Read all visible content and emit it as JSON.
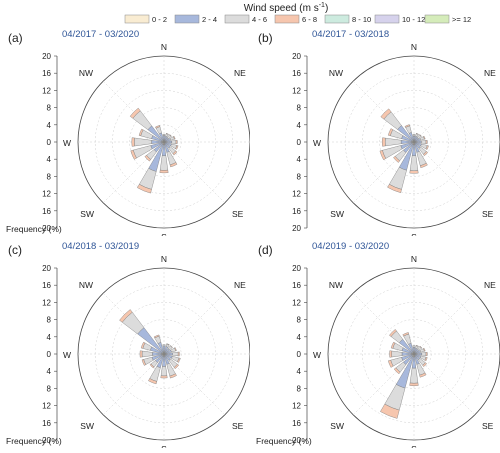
{
  "legend": {
    "title": "Wind speed (m s",
    "title_sup": "-1",
    "title_end": ")",
    "items": [
      {
        "label": "0 - 2",
        "color": "#f9ecd2"
      },
      {
        "label": "2 - 4",
        "color": "#a7b8dc"
      },
      {
        "label": "4 - 6",
        "color": "#dcdcdc"
      },
      {
        "label": "6 - 8",
        "color": "#f6c6ae"
      },
      {
        "label": "8 - 10",
        "color": "#cdebdf"
      },
      {
        "label": "10 - 12",
        "color": "#d6d2ec"
      },
      {
        "label": ">= 12",
        "color": "#d5ecba"
      }
    ]
  },
  "chart_data": [
    {
      "type": "wind-rose",
      "panel_label": "(a)",
      "period": "04/2017 - 03/2020",
      "xlabel": "Frequency (%)",
      "directions": [
        "N",
        "NNE",
        "NE",
        "ENE",
        "E",
        "ESE",
        "SE",
        "SSE",
        "S",
        "SSW",
        "SW",
        "WSW",
        "W",
        "WNW",
        "NW",
        "NNW"
      ],
      "compass_labels": [
        "N",
        "NE",
        "E",
        "SE",
        "S",
        "SW",
        "W",
        "NW"
      ],
      "radial_ticks": [
        0,
        4,
        8,
        12,
        16,
        20
      ],
      "axis_tick_labels": [
        "20",
        "16",
        "12",
        "8",
        "4",
        "0",
        "4",
        "8",
        "12",
        "16",
        "20"
      ],
      "rmax": 20,
      "stacks": [
        [
          0.3,
          1.2,
          0.3,
          0.0,
          0,
          0,
          0
        ],
        [
          0.4,
          1.0,
          0.6,
          0.1,
          0,
          0,
          0
        ],
        [
          0.4,
          0.9,
          0.8,
          0.1,
          0,
          0,
          0
        ],
        [
          0.4,
          1.2,
          0.9,
          0.2,
          0,
          0,
          0
        ],
        [
          0.4,
          1.4,
          1.0,
          0.3,
          0,
          0,
          0
        ],
        [
          0.4,
          1.4,
          1.3,
          0.3,
          0,
          0,
          0
        ],
        [
          0.4,
          1.4,
          1.6,
          0.4,
          0,
          0,
          0
        ],
        [
          0.5,
          2.0,
          3.0,
          0.5,
          0,
          0,
          0
        ],
        [
          0.6,
          2.6,
          3.4,
          0.6,
          0,
          0,
          0
        ],
        [
          0.6,
          6.5,
          4.3,
          0.9,
          0,
          0,
          0
        ],
        [
          0.5,
          2.4,
          2.2,
          0.5,
          0,
          0,
          0
        ],
        [
          0.5,
          2.7,
          4.2,
          0.6,
          0,
          0,
          0
        ],
        [
          0.5,
          2.4,
          4.0,
          0.6,
          0,
          0,
          0
        ],
        [
          0.5,
          2.5,
          2.6,
          0.4,
          0,
          0,
          0
        ],
        [
          0.5,
          4.2,
          4.4,
          0.8,
          0,
          0,
          0
        ],
        [
          0.4,
          1.8,
          1.5,
          0.3,
          0,
          0,
          0
        ]
      ]
    },
    {
      "type": "wind-rose",
      "panel_label": "(b)",
      "period": "04/2017 - 03/2018",
      "xlabel": "",
      "directions": [
        "N",
        "NNE",
        "NE",
        "ENE",
        "E",
        "ESE",
        "SE",
        "SSE",
        "S",
        "SSW",
        "SW",
        "WSW",
        "W",
        "WNW",
        "NW",
        "NNW"
      ],
      "compass_labels": [
        "N",
        "NE",
        "E",
        "SE",
        "S",
        "SW",
        "W",
        "NW"
      ],
      "radial_ticks": [
        0,
        4,
        8,
        12,
        16,
        20
      ],
      "axis_tick_labels": [
        "20",
        "16",
        "12",
        "8",
        "4",
        "0",
        "4",
        "8",
        "12",
        "16",
        "20"
      ],
      "rmax": 20,
      "stacks": [
        [
          0.3,
          1.1,
          0.4,
          0.0,
          0,
          0,
          0
        ],
        [
          0.4,
          1.0,
          0.6,
          0.1,
          0,
          0,
          0
        ],
        [
          0.4,
          0.9,
          0.8,
          0.1,
          0,
          0,
          0
        ],
        [
          0.4,
          1.2,
          0.9,
          0.2,
          0,
          0,
          0
        ],
        [
          0.4,
          1.3,
          1.1,
          0.3,
          0,
          0,
          0
        ],
        [
          0.4,
          1.4,
          1.4,
          0.3,
          0,
          0,
          0
        ],
        [
          0.4,
          1.5,
          1.7,
          0.4,
          0,
          0,
          0
        ],
        [
          0.5,
          2.0,
          3.2,
          0.5,
          0,
          0,
          0
        ],
        [
          0.6,
          2.6,
          3.5,
          0.6,
          0,
          0,
          0
        ],
        [
          0.6,
          6.2,
          4.6,
          0.8,
          0,
          0,
          0
        ],
        [
          0.5,
          2.6,
          2.4,
          0.5,
          0,
          0,
          0
        ],
        [
          0.5,
          2.7,
          4.4,
          0.6,
          0,
          0,
          0
        ],
        [
          0.5,
          2.5,
          3.7,
          0.7,
          0,
          0,
          0
        ],
        [
          0.5,
          2.5,
          2.7,
          0.5,
          0,
          0,
          0
        ],
        [
          0.5,
          4.3,
          4.0,
          0.9,
          0,
          0,
          0
        ],
        [
          0.4,
          1.9,
          1.6,
          0.3,
          0,
          0,
          0
        ]
      ]
    },
    {
      "type": "wind-rose",
      "panel_label": "(c)",
      "period": "04/2018 - 03/2019",
      "xlabel": "Frequency (%)",
      "directions": [
        "N",
        "NNE",
        "NE",
        "ENE",
        "E",
        "ESE",
        "SE",
        "SSE",
        "S",
        "SSW",
        "SW",
        "WSW",
        "W",
        "WNW",
        "NW",
        "NNW"
      ],
      "compass_labels": [
        "N",
        "NE",
        "E",
        "SE",
        "S",
        "SW",
        "W",
        "NW"
      ],
      "radial_ticks": [
        0,
        4,
        8,
        12,
        16,
        20
      ],
      "axis_tick_labels": [
        "20",
        "16",
        "12",
        "8",
        "4",
        "0",
        "4",
        "8",
        "12",
        "16",
        "20"
      ],
      "rmax": 20,
      "stacks": [
        [
          0.3,
          1.6,
          0.3,
          0.0,
          0,
          0,
          0
        ],
        [
          0.4,
          1.4,
          0.6,
          0.1,
          0,
          0,
          0
        ],
        [
          0.4,
          1.2,
          0.8,
          0.1,
          0,
          0,
          0
        ],
        [
          0.4,
          1.4,
          1.0,
          0.2,
          0,
          0,
          0
        ],
        [
          0.4,
          1.6,
          1.3,
          0.3,
          0,
          0,
          0
        ],
        [
          0.4,
          1.6,
          1.6,
          0.3,
          0,
          0,
          0
        ],
        [
          0.4,
          1.5,
          2.0,
          0.4,
          0,
          0,
          0
        ],
        [
          0.5,
          2.0,
          2.8,
          0.5,
          0,
          0,
          0
        ],
        [
          0.5,
          2.4,
          2.2,
          0.5,
          0,
          0,
          0
        ],
        [
          0.5,
          2.8,
          3.3,
          0.6,
          0,
          0,
          0
        ],
        [
          0.5,
          2.0,
          1.3,
          0.3,
          0,
          0,
          0
        ],
        [
          0.5,
          2.4,
          2.0,
          0.4,
          0,
          0,
          0
        ],
        [
          0.5,
          2.2,
          2.4,
          0.5,
          0,
          0,
          0
        ],
        [
          0.5,
          2.8,
          1.8,
          0.4,
          0,
          0,
          0
        ],
        [
          0.5,
          7.2,
          4.5,
          0.8,
          0,
          0,
          0
        ],
        [
          0.4,
          2.4,
          1.5,
          0.3,
          0,
          0,
          0
        ]
      ]
    },
    {
      "type": "wind-rose",
      "panel_label": "(d)",
      "period": "04/2019 - 03/2020",
      "xlabel": "Frequency (%)",
      "directions": [
        "N",
        "NNE",
        "NE",
        "ENE",
        "E",
        "ESE",
        "SE",
        "SSE",
        "S",
        "SSW",
        "SW",
        "WSW",
        "W",
        "WNW",
        "NW",
        "NNW"
      ],
      "compass_labels": [
        "N",
        "NE",
        "E",
        "SE",
        "S",
        "SW",
        "W",
        "NW"
      ],
      "radial_ticks": [
        0,
        4,
        8,
        12,
        16,
        20
      ],
      "axis_tick_labels": [
        "20",
        "16",
        "12",
        "8",
        "4",
        "0",
        "4",
        "8",
        "12",
        "16",
        "20"
      ],
      "rmax": 20,
      "stacks": [
        [
          0.3,
          1.3,
          0.4,
          0.0,
          0,
          0,
          0
        ],
        [
          0.4,
          1.0,
          0.6,
          0.1,
          0,
          0,
          0
        ],
        [
          0.4,
          1.0,
          0.8,
          0.1,
          0,
          0,
          0
        ],
        [
          0.4,
          1.2,
          0.9,
          0.2,
          0,
          0,
          0
        ],
        [
          0.4,
          1.4,
          1.0,
          0.3,
          0,
          0,
          0
        ],
        [
          0.4,
          1.3,
          1.2,
          0.3,
          0,
          0,
          0
        ],
        [
          0.4,
          1.3,
          1.6,
          0.4,
          0,
          0,
          0
        ],
        [
          0.5,
          2.0,
          2.6,
          0.5,
          0,
          0,
          0
        ],
        [
          0.6,
          2.7,
          3.5,
          0.6,
          0,
          0,
          0
        ],
        [
          0.7,
          7.5,
          5.3,
          2.0,
          0,
          0,
          0
        ],
        [
          0.5,
          2.6,
          2.2,
          0.5,
          0,
          0,
          0
        ],
        [
          0.5,
          2.5,
          2.6,
          0.6,
          0,
          0,
          0
        ],
        [
          0.5,
          2.3,
          2.4,
          0.5,
          0,
          0,
          0
        ],
        [
          0.5,
          2.4,
          2.2,
          0.4,
          0,
          0,
          0
        ],
        [
          0.5,
          3.8,
          2.4,
          0.5,
          0,
          0,
          0
        ],
        [
          0.4,
          2.2,
          2.2,
          0.4,
          0,
          0,
          0
        ]
      ]
    }
  ]
}
